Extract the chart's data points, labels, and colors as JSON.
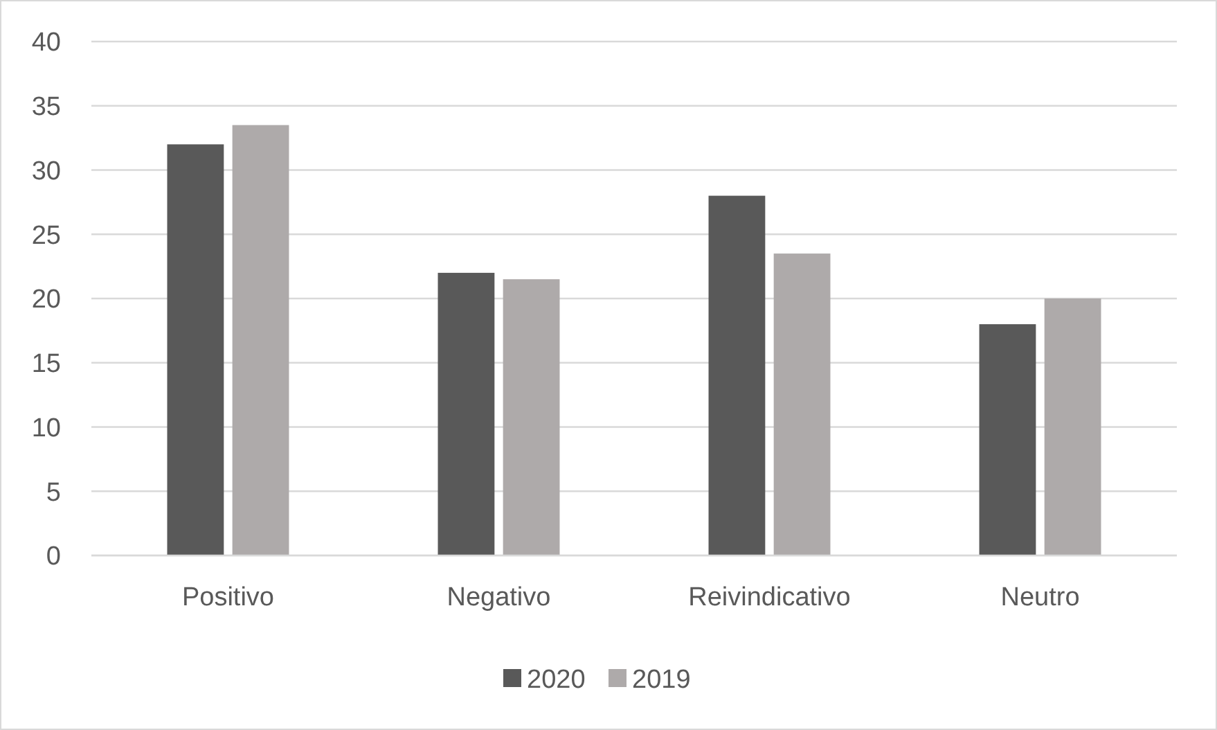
{
  "chart_data": {
    "type": "bar",
    "categories": [
      "Positivo",
      "Negativo",
      "Reivindicativo",
      "Neutro"
    ],
    "series": [
      {
        "name": "2020",
        "color": "#595959",
        "values": [
          32,
          22,
          28,
          18
        ]
      },
      {
        "name": "2019",
        "color": "#aeaaaa",
        "values": [
          33.5,
          21.5,
          23.5,
          20
        ]
      }
    ],
    "ylim": [
      0,
      40
    ],
    "yticks": [
      0,
      5,
      10,
      15,
      20,
      25,
      30,
      35,
      40
    ],
    "grid": "y",
    "legend": "bottom"
  }
}
